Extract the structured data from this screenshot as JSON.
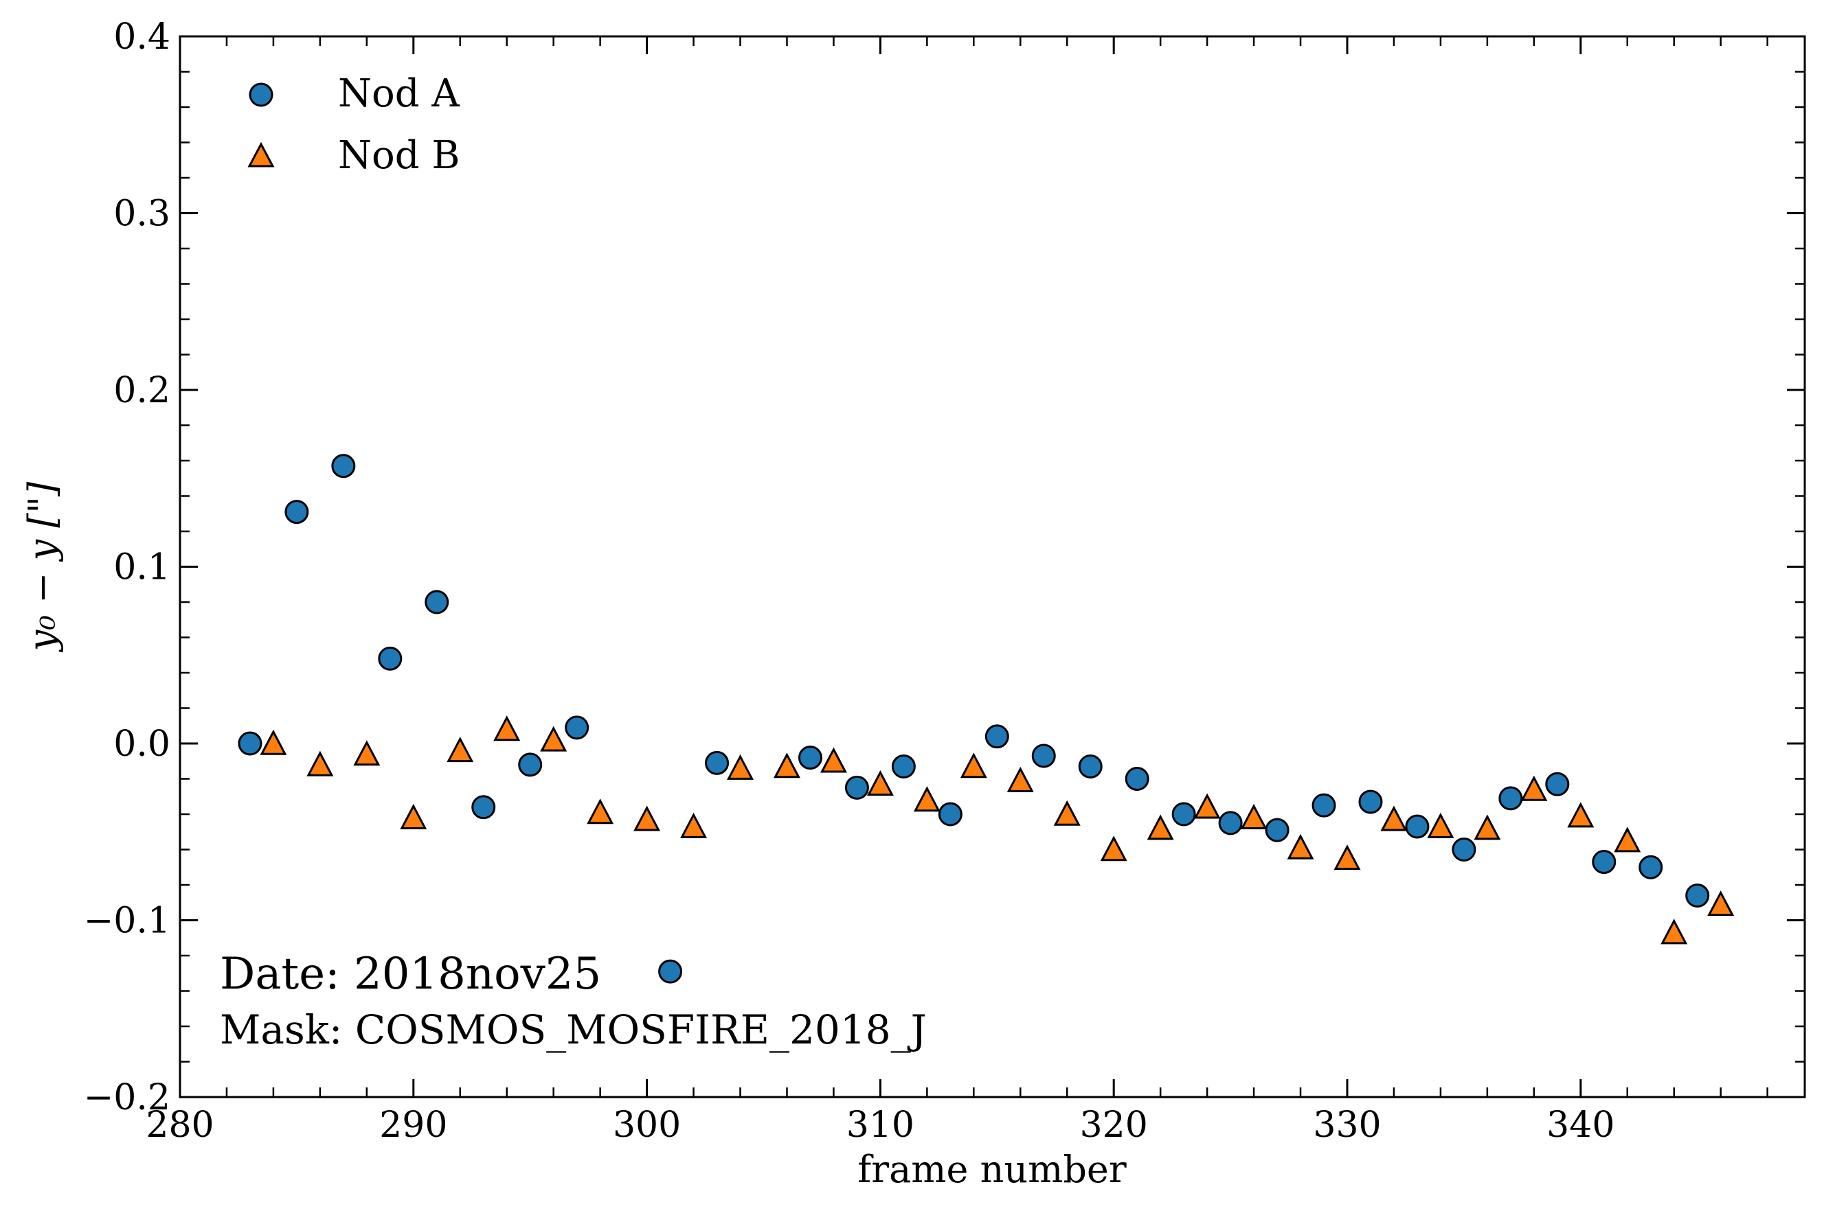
{
  "chart_data": {
    "type": "scatter",
    "xlabel": "frame number",
    "ylabel_html": "y₀ − y [\"]",
    "xlim": [
      280,
      349.6
    ],
    "ylim": [
      -0.2,
      0.4
    ],
    "x_ticks": [
      280,
      290,
      300,
      310,
      320,
      330,
      340
    ],
    "x_tick_labels": [
      "280",
      "290",
      "300",
      "310",
      "320",
      "330",
      "340"
    ],
    "y_ticks": [
      -0.2,
      -0.1,
      0.0,
      0.1,
      0.2,
      0.3,
      0.4
    ],
    "y_tick_labels": [
      "−0.2",
      "−0.1",
      "0.0",
      "0.1",
      "0.2",
      "0.3",
      "0.4"
    ],
    "x_minor_step": 2,
    "y_minor_step": 0.02,
    "grid": false,
    "legend_position": "top-left",
    "series": [
      {
        "name": "Nod A",
        "marker": "circle",
        "color": "#1f77b4",
        "points": [
          [
            283,
            0.0
          ],
          [
            285,
            0.131
          ],
          [
            287,
            0.157
          ],
          [
            289,
            0.048
          ],
          [
            291,
            0.08
          ],
          [
            293,
            -0.036
          ],
          [
            295,
            -0.012
          ],
          [
            297,
            0.009
          ],
          [
            301,
            -0.129
          ],
          [
            303,
            -0.011
          ],
          [
            307,
            -0.008
          ],
          [
            309,
            -0.025
          ],
          [
            311,
            -0.013
          ],
          [
            313,
            -0.04
          ],
          [
            315,
            0.004
          ],
          [
            317,
            -0.007
          ],
          [
            319,
            -0.013
          ],
          [
            321,
            -0.02
          ],
          [
            323,
            -0.04
          ],
          [
            325,
            -0.045
          ],
          [
            327,
            -0.049
          ],
          [
            329,
            -0.035
          ],
          [
            331,
            -0.033
          ],
          [
            333,
            -0.047
          ],
          [
            335,
            -0.06
          ],
          [
            337,
            -0.031
          ],
          [
            339,
            -0.023
          ],
          [
            341,
            -0.067
          ],
          [
            343,
            -0.07
          ],
          [
            345,
            -0.086
          ]
        ]
      },
      {
        "name": "Nod B",
        "marker": "triangle",
        "color": "#ff7f0e",
        "points": [
          [
            284,
            0.0
          ],
          [
            286,
            -0.012
          ],
          [
            288,
            -0.006
          ],
          [
            290,
            -0.042
          ],
          [
            292,
            -0.004
          ],
          [
            294,
            0.008
          ],
          [
            296,
            0.002
          ],
          [
            298,
            -0.039
          ],
          [
            300,
            -0.043
          ],
          [
            302,
            -0.047
          ],
          [
            304,
            -0.014
          ],
          [
            306,
            -0.013
          ],
          [
            308,
            -0.01
          ],
          [
            310,
            -0.023
          ],
          [
            312,
            -0.032
          ],
          [
            314,
            -0.013
          ],
          [
            316,
            -0.021
          ],
          [
            318,
            -0.04
          ],
          [
            320,
            -0.06
          ],
          [
            322,
            -0.048
          ],
          [
            324,
            -0.036
          ],
          [
            326,
            -0.042
          ],
          [
            328,
            -0.059
          ],
          [
            330,
            -0.065
          ],
          [
            332,
            -0.043
          ],
          [
            334,
            -0.047
          ],
          [
            336,
            -0.048
          ],
          [
            338,
            -0.026
          ],
          [
            340,
            -0.041
          ],
          [
            342,
            -0.055
          ],
          [
            344,
            -0.107
          ],
          [
            346,
            -0.091
          ]
        ]
      }
    ],
    "annotations": [
      "Date: 2018nov25",
      "Mask: COSMOS_MOSFIRE_2018_J"
    ]
  }
}
